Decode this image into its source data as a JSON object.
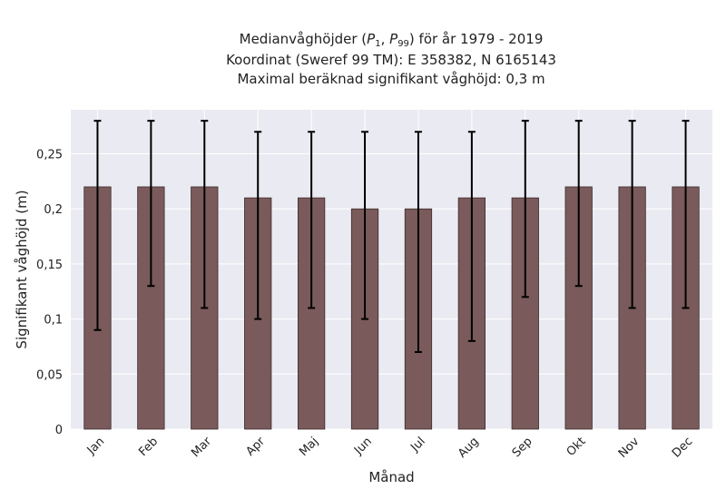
{
  "title": {
    "line1_prefix": "Medianvåghöjder (",
    "p_symbol": "P",
    "p1_sub": "1",
    "sep": ", ",
    "p99_sub": "99",
    "line1_suffix": ") för år 1979 - 2019",
    "line2": "Koordinat (Sweref 99 TM): E 358382, N 6165143",
    "line3": "Maximal beräknad signifikant våghöjd: 0,3 m"
  },
  "colors": {
    "plot_bg": "#eaeaf2",
    "grid": "#ffffff",
    "bar_fill": "#7a5a5a",
    "bar_edge": "#3a2c2c",
    "errorbar": "#000000"
  },
  "chart_data": {
    "type": "bar",
    "xlabel": "Månad",
    "ylabel": "Signifikant våghöjd (m)",
    "ylim": [
      0,
      0.29
    ],
    "yticks": [
      0,
      0.05,
      0.1,
      0.15,
      0.2,
      0.25
    ],
    "ytick_labels": [
      "0",
      "0,05",
      "0,1",
      "0,15",
      "0,2",
      "0,25"
    ],
    "grid": true,
    "categories": [
      "Jan",
      "Feb",
      "Mar",
      "Apr",
      "Maj",
      "Jun",
      "Jul",
      "Aug",
      "Sep",
      "Okt",
      "Nov",
      "Dec"
    ],
    "values": [
      0.22,
      0.22,
      0.22,
      0.21,
      0.21,
      0.2,
      0.2,
      0.21,
      0.21,
      0.22,
      0.22,
      0.22
    ],
    "error_low": [
      0.09,
      0.13,
      0.11,
      0.1,
      0.11,
      0.1,
      0.07,
      0.08,
      0.12,
      0.13,
      0.11,
      0.11
    ],
    "error_high": [
      0.28,
      0.28,
      0.28,
      0.27,
      0.27,
      0.27,
      0.27,
      0.27,
      0.28,
      0.28,
      0.28,
      0.28
    ]
  }
}
